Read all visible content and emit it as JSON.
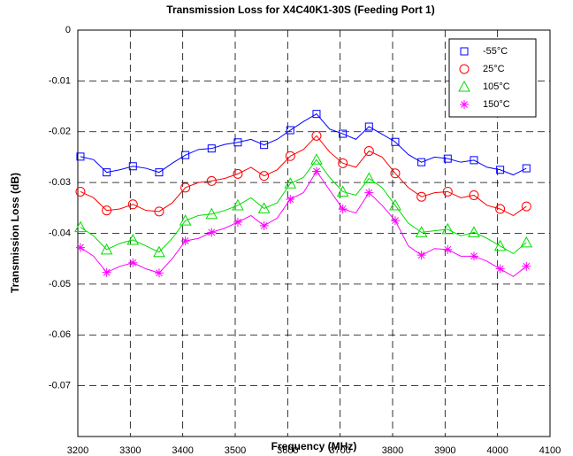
{
  "chart_data": {
    "type": "line",
    "title": "Transmission Loss for X4C40K1-30S (Feeding Port 1)",
    "xlabel": "Frequency (MHz)",
    "ylabel": "Transmission Loss (dB)",
    "x": [
      3205,
      3230,
      3255,
      3280,
      3305,
      3330,
      3355,
      3380,
      3405,
      3430,
      3455,
      3480,
      3505,
      3530,
      3555,
      3580,
      3605,
      3630,
      3655,
      3680,
      3705,
      3730,
      3755,
      3780,
      3805,
      3830,
      3855,
      3880,
      3905,
      3930,
      3955,
      3980,
      4005,
      4030,
      4055
    ],
    "series": [
      {
        "name": "-55°C",
        "color": "#0000ff",
        "marker": "square",
        "values": [
          -0.0249,
          -0.0255,
          -0.028,
          -0.0275,
          -0.0268,
          -0.0272,
          -0.028,
          -0.0262,
          -0.0246,
          -0.0235,
          -0.0233,
          -0.0225,
          -0.0221,
          -0.0215,
          -0.0226,
          -0.0215,
          -0.0197,
          -0.018,
          -0.0165,
          -0.0195,
          -0.0204,
          -0.0215,
          -0.019,
          -0.0205,
          -0.022,
          -0.0245,
          -0.026,
          -0.025,
          -0.0253,
          -0.026,
          -0.0256,
          -0.027,
          -0.0275,
          -0.0285,
          -0.0272
        ]
      },
      {
        "name": "25°C",
        "color": "#ff0000",
        "marker": "circle",
        "values": [
          -0.0318,
          -0.033,
          -0.0355,
          -0.0352,
          -0.0343,
          -0.0355,
          -0.0357,
          -0.034,
          -0.031,
          -0.03,
          -0.0297,
          -0.0292,
          -0.0283,
          -0.027,
          -0.0287,
          -0.0275,
          -0.0248,
          -0.0235,
          -0.0208,
          -0.024,
          -0.0262,
          -0.027,
          -0.0238,
          -0.025,
          -0.0282,
          -0.031,
          -0.0328,
          -0.032,
          -0.0318,
          -0.033,
          -0.0325,
          -0.0345,
          -0.0352,
          -0.0365,
          -0.0347
        ]
      },
      {
        "name": "105°C",
        "color": "#00dd00",
        "marker": "triangle",
        "values": [
          -0.0388,
          -0.0405,
          -0.0432,
          -0.042,
          -0.0413,
          -0.0425,
          -0.0437,
          -0.041,
          -0.0375,
          -0.0365,
          -0.0362,
          -0.0355,
          -0.0345,
          -0.033,
          -0.0351,
          -0.034,
          -0.0302,
          -0.029,
          -0.0255,
          -0.029,
          -0.0318,
          -0.0325,
          -0.0292,
          -0.031,
          -0.0345,
          -0.038,
          -0.0398,
          -0.0395,
          -0.0392,
          -0.0405,
          -0.0398,
          -0.041,
          -0.0425,
          -0.044,
          -0.0418
        ]
      },
      {
        "name": "150°C",
        "color": "#ff00ff",
        "marker": "asterisk",
        "values": [
          -0.0428,
          -0.0445,
          -0.0477,
          -0.0465,
          -0.0458,
          -0.047,
          -0.0478,
          -0.045,
          -0.0415,
          -0.041,
          -0.0398,
          -0.039,
          -0.0378,
          -0.0365,
          -0.0385,
          -0.037,
          -0.0333,
          -0.032,
          -0.0278,
          -0.0315,
          -0.0352,
          -0.036,
          -0.032,
          -0.0345,
          -0.0375,
          -0.0425,
          -0.0443,
          -0.043,
          -0.0432,
          -0.0445,
          -0.0445,
          -0.0455,
          -0.047,
          -0.0485,
          -0.0465
        ]
      }
    ],
    "marker_every": 2,
    "xlim": [
      3200,
      4100
    ],
    "xticks": [
      3200,
      3300,
      3400,
      3500,
      3600,
      3700,
      3800,
      3900,
      4000,
      4100
    ],
    "ylim": [
      -0.08,
      0
    ],
    "yticks": [
      0,
      -0.01,
      -0.02,
      -0.03,
      -0.04,
      -0.05,
      -0.06,
      -0.07
    ],
    "grid": true,
    "legend": "upper right"
  }
}
